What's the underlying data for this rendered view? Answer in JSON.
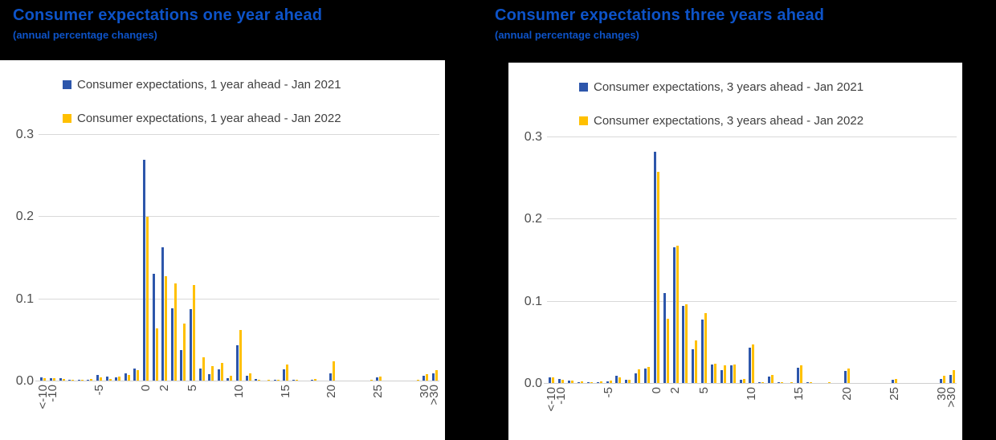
{
  "colors": {
    "background": "#000000",
    "panel": "#ffffff",
    "title_blue": "#0d53c8",
    "bar_blue_2021": "#2d56ab",
    "bar_gold_2022": "#ffc000",
    "gridline": "#d9d9d9",
    "axis_line": "#cfcfcf",
    "tick_label": "#4d4d4d",
    "legend_text": "#404040"
  },
  "chart_data": [
    {
      "type": "bar",
      "title": "Consumer expectations one year ahead",
      "subtitle": "(annual percentage changes)",
      "xlabel": "",
      "ylabel": "",
      "ylim": [
        0,
        0.3
      ],
      "yticks": [
        "0.0",
        "0.1",
        "0.2",
        "0.3"
      ],
      "grid": "horizontal",
      "legend_position": "top-left",
      "categories": [
        "<-10",
        "-10",
        "-9",
        "-8",
        "-7",
        "-6",
        "-5",
        "-4",
        "-3",
        "-2",
        "-1",
        "0",
        "1",
        "2",
        "3",
        "4",
        "5",
        "6",
        "7",
        "8",
        "9",
        "10",
        "11",
        "12",
        "13",
        "14",
        "15",
        "16",
        "17",
        "18",
        "19",
        "20",
        "21",
        "22",
        "23",
        "24",
        "25",
        "26",
        "27",
        "28",
        "29",
        "30",
        ">30"
      ],
      "xticks": [
        "<-10",
        "-10",
        "-5",
        "0",
        "2",
        "5",
        "10",
        "15",
        "20",
        "25",
        "30",
        ">30"
      ],
      "series": [
        {
          "name": "Consumer expectations, 1 year ahead - Jan 2021",
          "color": "#2d56ab",
          "values": [
            0.005,
            0.004,
            0.004,
            0.002,
            0.002,
            0.002,
            0.008,
            0.006,
            0.005,
            0.01,
            0.016,
            0.27,
            0.131,
            0.163,
            0.089,
            0.038,
            0.088,
            0.016,
            0.009,
            0.015,
            0.004,
            0.044,
            0.007,
            0.003,
            0.001,
            0.002,
            0.015,
            0.002,
            0.001,
            0.002,
            0.001,
            0.01,
            0.001,
            0.001,
            0.001,
            0.001,
            0.005,
            0.001,
            0.0,
            0.0,
            0.001,
            0.007,
            0.01
          ]
        },
        {
          "name": "Consumer expectations, 1 year ahead - Jan 2022",
          "color": "#ffc000",
          "values": [
            0.004,
            0.004,
            0.003,
            0.002,
            0.002,
            0.003,
            0.005,
            0.003,
            0.006,
            0.008,
            0.014,
            0.2,
            0.064,
            0.128,
            0.119,
            0.07,
            0.117,
            0.029,
            0.019,
            0.022,
            0.007,
            0.063,
            0.01,
            0.002,
            0.002,
            0.002,
            0.021,
            0.002,
            0.001,
            0.003,
            0.001,
            0.024,
            0.001,
            0.001,
            0.001,
            0.002,
            0.006,
            0.001,
            0.001,
            0.0,
            0.002,
            0.009,
            0.014
          ]
        }
      ]
    },
    {
      "type": "bar",
      "title": "Consumer expectations three years ahead",
      "subtitle": "(annual percentage changes)",
      "xlabel": "",
      "ylabel": "",
      "ylim": [
        0,
        0.3
      ],
      "yticks": [
        "0.0",
        "0.1",
        "0.2",
        "0.3"
      ],
      "grid": "horizontal",
      "legend_position": "top-left",
      "categories": [
        "<-10",
        "-10",
        "-9",
        "-8",
        "-7",
        "-6",
        "-5",
        "-4",
        "-3",
        "-2",
        "-1",
        "0",
        "1",
        "2",
        "3",
        "4",
        "5",
        "6",
        "7",
        "8",
        "9",
        "10",
        "11",
        "12",
        "13",
        "14",
        "15",
        "16",
        "17",
        "18",
        "19",
        "20",
        "21",
        "22",
        "23",
        "24",
        "25",
        "26",
        "27",
        "28",
        "29",
        "30",
        ">30"
      ],
      "xticks": [
        "<-10",
        "-10",
        "-5",
        "0",
        "2",
        "5",
        "10",
        "15",
        "20",
        "25",
        "30",
        ">30"
      ],
      "series": [
        {
          "name": "Consumer expectations, 3 years ahead - Jan 2021",
          "color": "#2d56ab",
          "values": [
            0.008,
            0.006,
            0.004,
            0.002,
            0.002,
            0.002,
            0.003,
            0.01,
            0.005,
            0.013,
            0.019,
            0.282,
            0.11,
            0.166,
            0.095,
            0.042,
            0.078,
            0.023,
            0.017,
            0.022,
            0.005,
            0.044,
            0.002,
            0.009,
            0.002,
            0.001,
            0.02,
            0.002,
            0.001,
            0.001,
            0.001,
            0.016,
            0.001,
            0.001,
            0.001,
            0.001,
            0.005,
            0.001,
            0.0,
            0.001,
            0.0,
            0.006,
            0.011
          ]
        },
        {
          "name": "Consumer expectations, 3 years ahead - Jan 2022",
          "color": "#ffc000",
          "values": [
            0.008,
            0.005,
            0.004,
            0.003,
            0.002,
            0.003,
            0.004,
            0.008,
            0.005,
            0.018,
            0.021,
            0.258,
            0.079,
            0.168,
            0.097,
            0.053,
            0.086,
            0.024,
            0.022,
            0.023,
            0.006,
            0.048,
            0.002,
            0.011,
            0.002,
            0.002,
            0.022,
            0.002,
            0.001,
            0.002,
            0.001,
            0.019,
            0.001,
            0.001,
            0.001,
            0.001,
            0.006,
            0.001,
            0.001,
            0.001,
            0.001,
            0.01,
            0.017
          ]
        }
      ]
    }
  ]
}
